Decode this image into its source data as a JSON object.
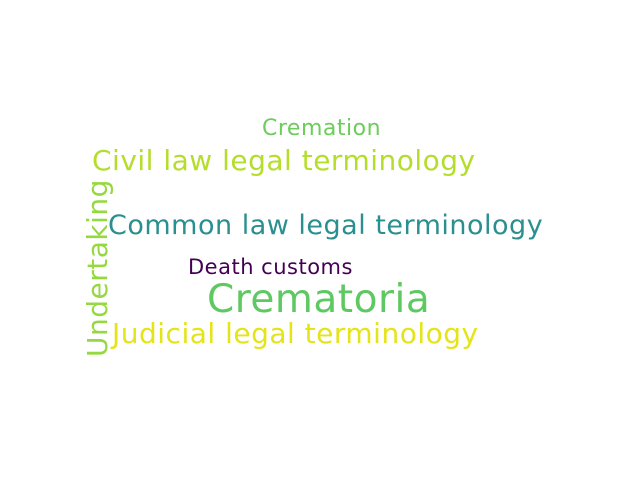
{
  "words": [
    {
      "text": "Cremation",
      "color": "#6ccd5a"
    },
    {
      "text": "Civil law legal terminology",
      "color": "#b5de2b"
    },
    {
      "text": "Common law legal terminology",
      "color": "#2a8f8e"
    },
    {
      "text": "Death customs",
      "color": "#440154"
    },
    {
      "text": "Crematoria",
      "color": "#5ec962"
    },
    {
      "text": "Judicial legal terminology",
      "color": "#e5e419"
    },
    {
      "text": "Undertaking",
      "color": "#95d840"
    }
  ]
}
